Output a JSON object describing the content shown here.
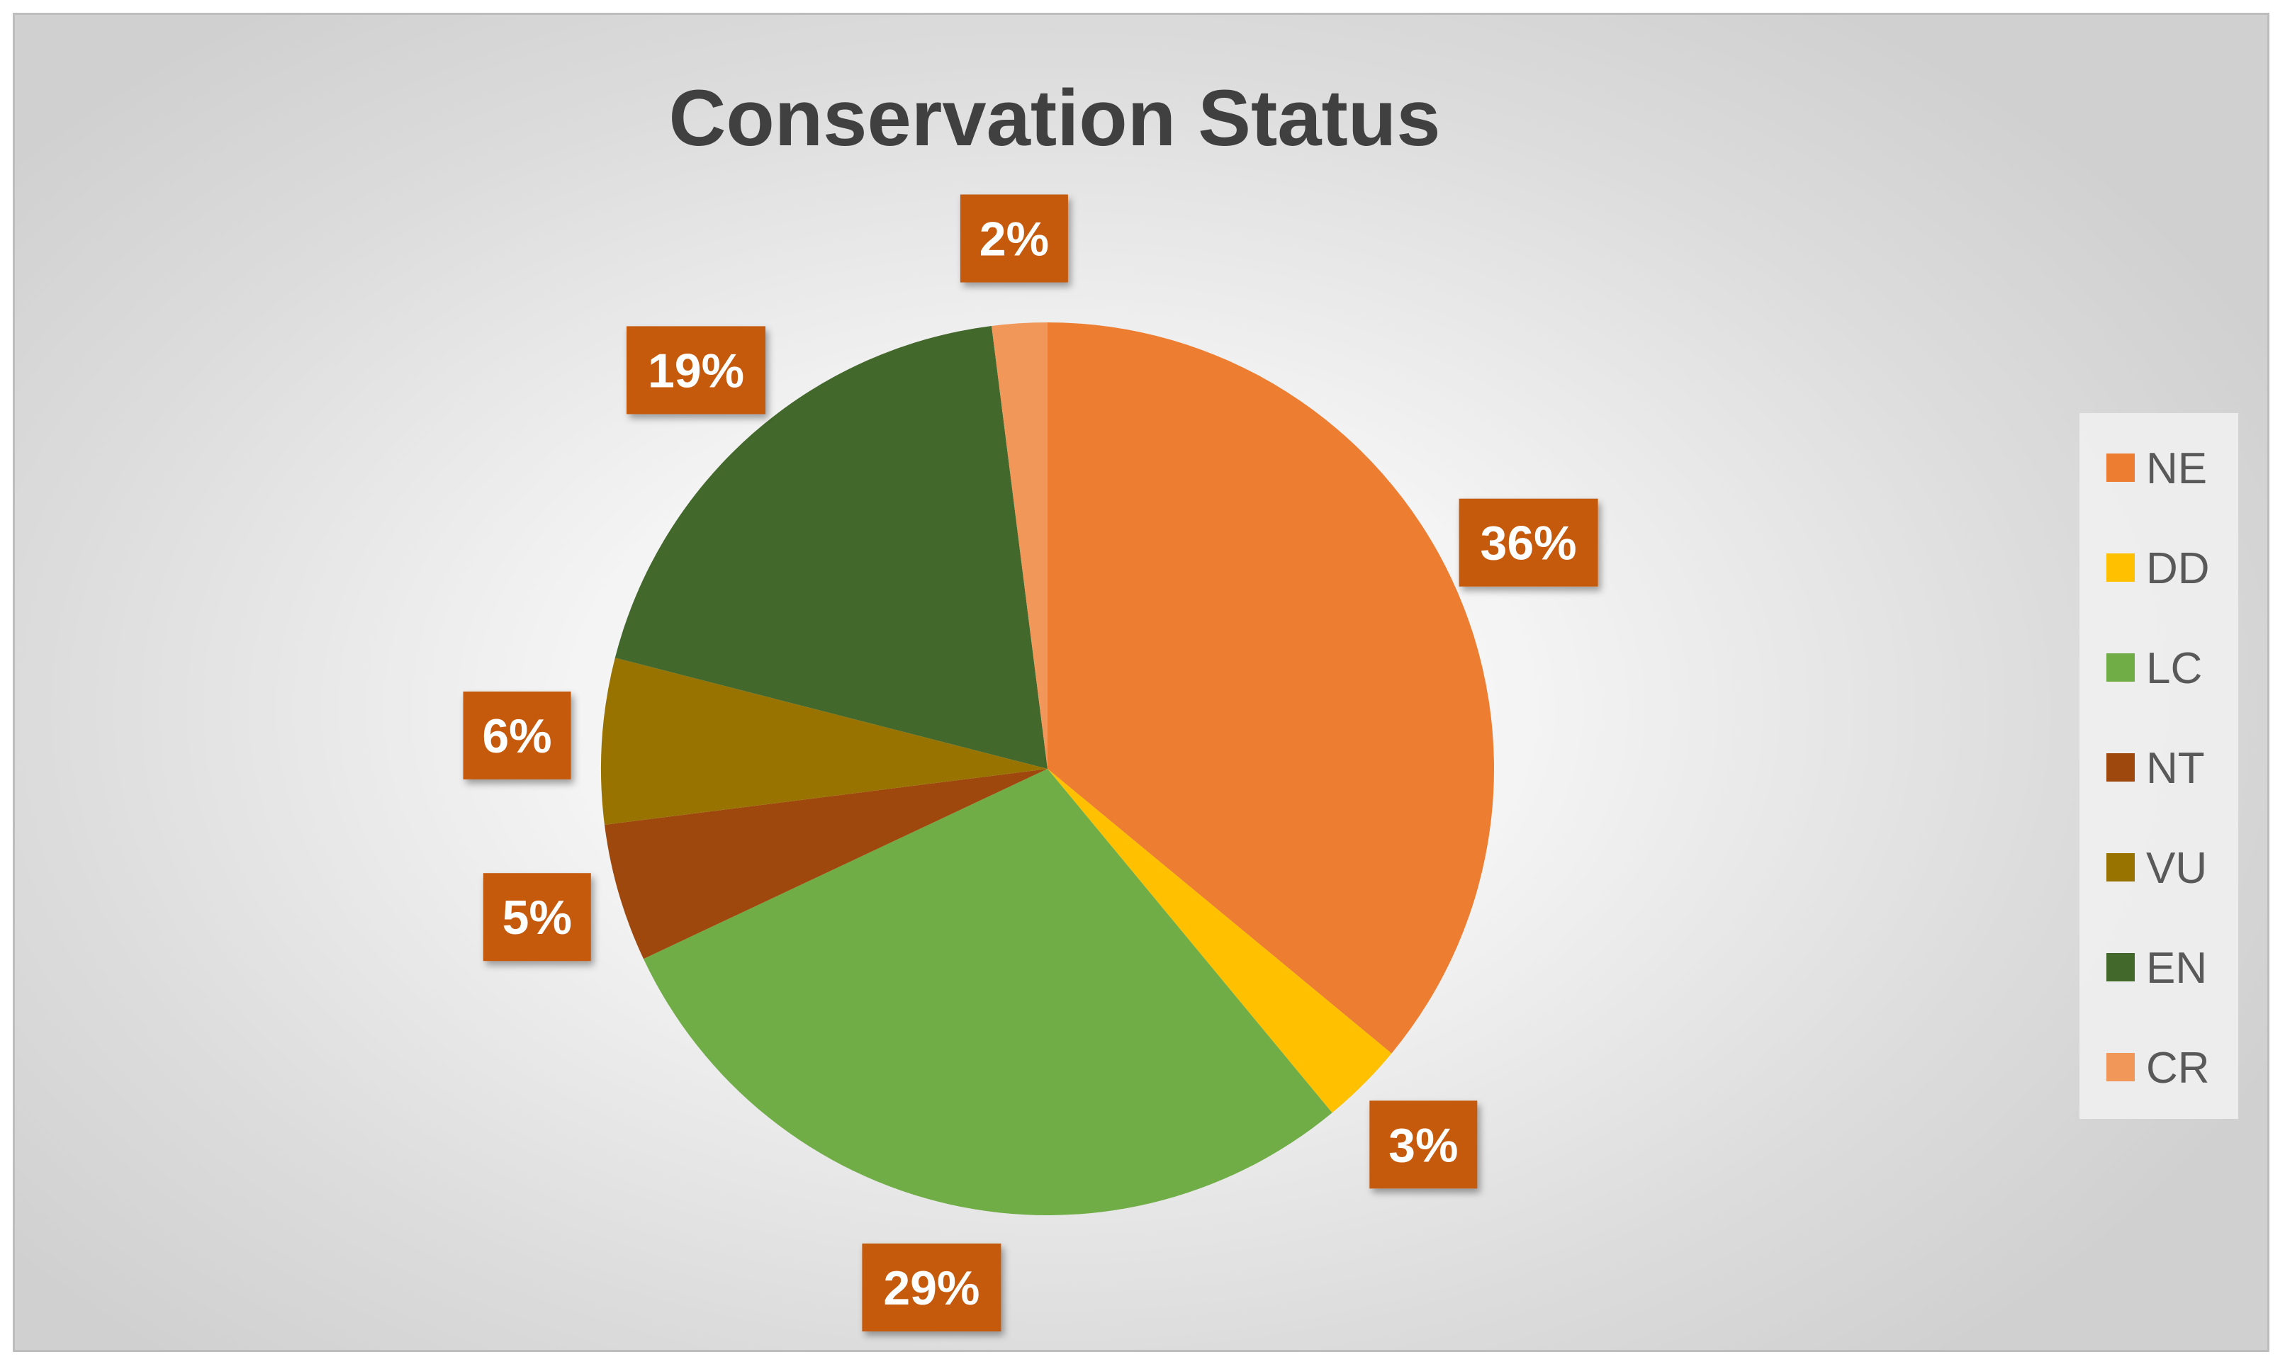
{
  "chart_data": {
    "type": "pie",
    "title": "Conservation Status",
    "categories": [
      "NE",
      "DD",
      "LC",
      "NT",
      "VU",
      "EN",
      "CR"
    ],
    "values": [
      36,
      3,
      29,
      5,
      6,
      19,
      2
    ],
    "data_labels": [
      "36%",
      "3%",
      "29%",
      "5%",
      "6%",
      "19%",
      "2%"
    ],
    "colors": [
      "#ED7D31",
      "#FFC000",
      "#70AD47",
      "#9E480E",
      "#997300",
      "#43682B",
      "#F1975A"
    ],
    "label_box_color": "#C55A11",
    "start_angle_deg": 0,
    "direction": "clockwise",
    "legend_position": "right",
    "grid": false
  }
}
